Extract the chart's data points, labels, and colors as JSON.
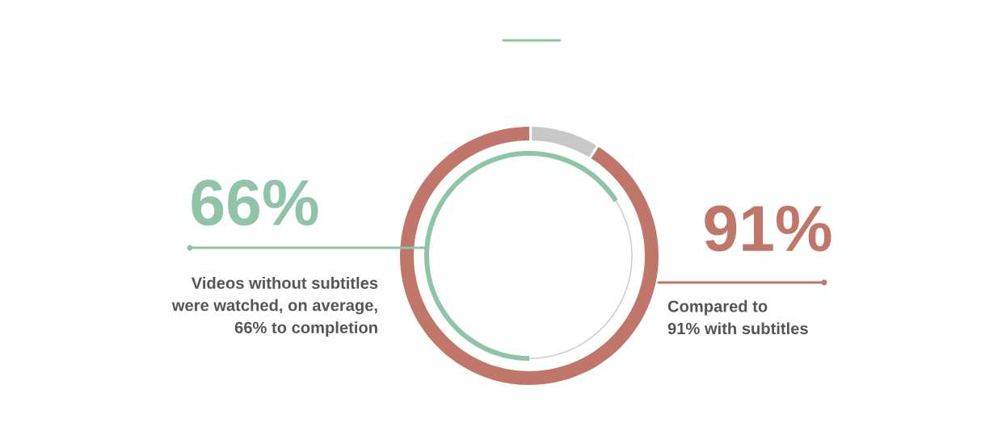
{
  "chart_data": {
    "type": "donut",
    "categories": [
      null,
      null
    ],
    "series": [
      {
        "values": [
          91,
          9
        ],
        "colors": [
          "#c0776a",
          "#c8c8c8"
        ],
        "value_labels": [
          "91%",
          null
        ]
      },
      {
        "values": [
          66,
          34
        ],
        "colors": [
          "#8fc4a8",
          "#cccccc"
        ],
        "value_labels": [
          "66%",
          null
        ]
      }
    ],
    "annotations": [
      "Compared to\n91% with subtitles",
      "Videos without subtitles\nwere watched, on average,\n66% to completion"
    ]
  }
}
